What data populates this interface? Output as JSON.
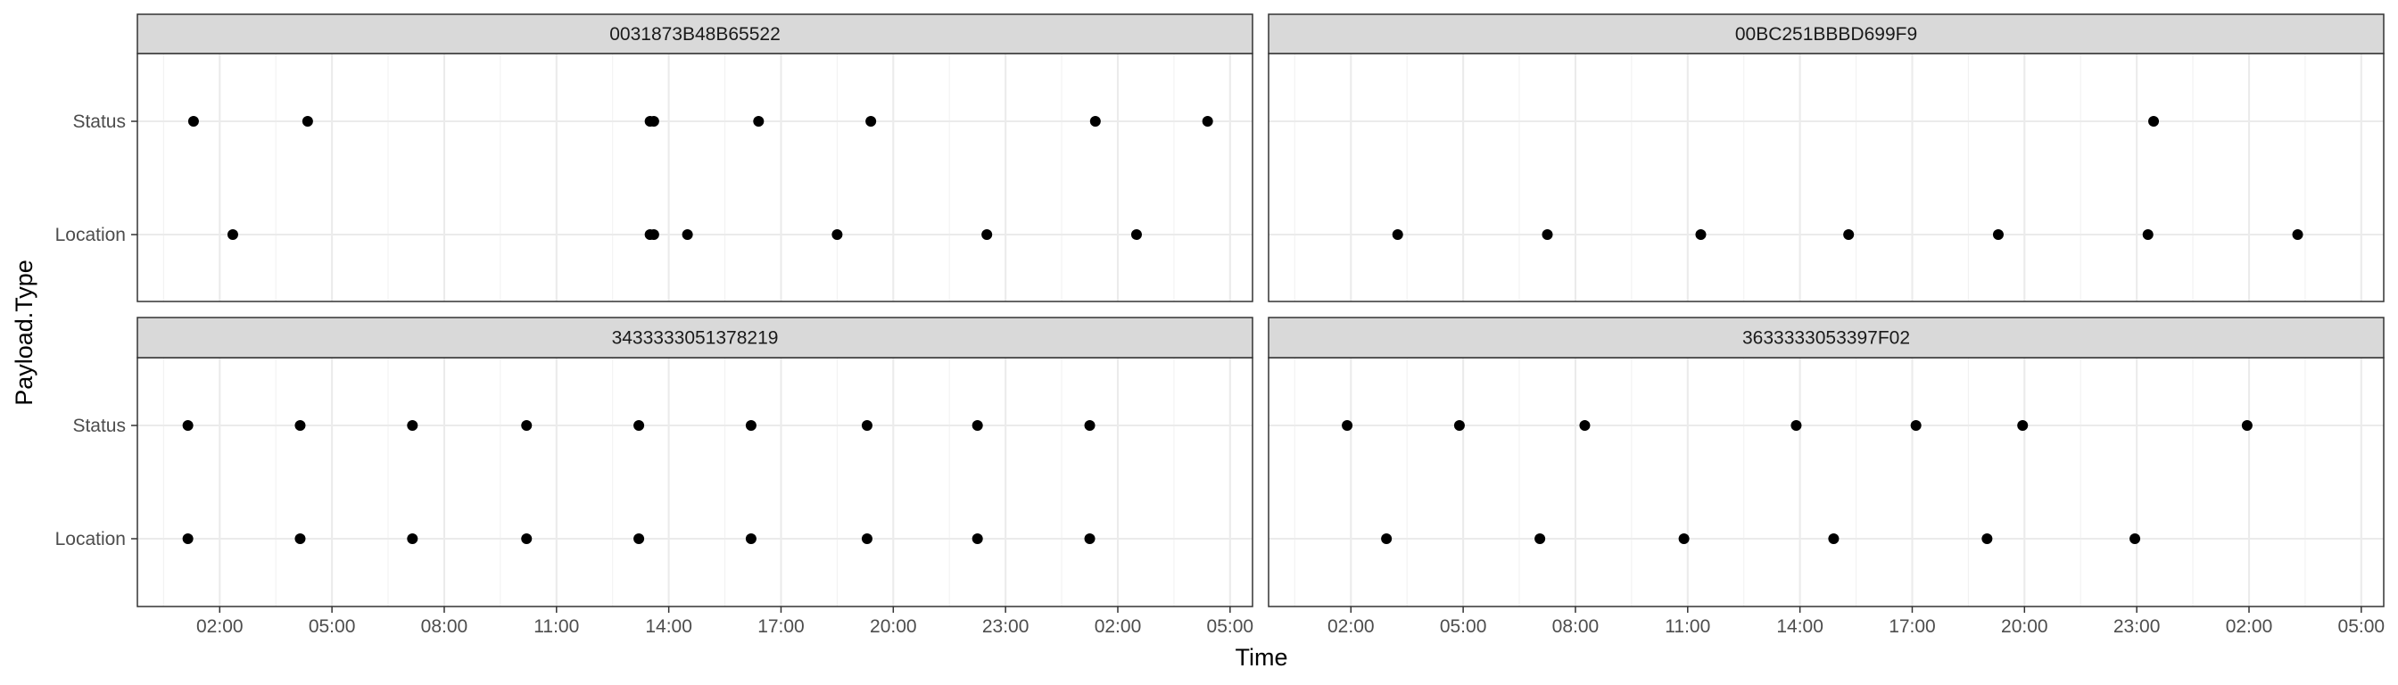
{
  "chart_data": {
    "type": "scatter",
    "xlabel": "Time",
    "ylabel": "Payload.Type",
    "y_categories": [
      "Location",
      "Status"
    ],
    "x_tick_labels": [
      "02:00",
      "05:00",
      "08:00",
      "11:00",
      "14:00",
      "17:00",
      "20:00",
      "23:00",
      "02:00",
      "05:00"
    ],
    "x_ticks_hours_offset": [
      2,
      5,
      8,
      11,
      14,
      17,
      20,
      23,
      26,
      29
    ],
    "xlim_hours_offset": [
      -0.2,
      29.6
    ],
    "x_note": "x values are hours offset from midnight of day 1 (day 2 times shown as 24+hh)",
    "grid": true,
    "theme": "bw",
    "point_color": "#000000",
    "panels": [
      {
        "title": "0031873B48B65522",
        "points": [
          {
            "category": "Status",
            "x": 1.3
          },
          {
            "category": "Status",
            "x": 4.35
          },
          {
            "category": "Status",
            "x": 13.5
          },
          {
            "category": "Status",
            "x": 13.6
          },
          {
            "category": "Status",
            "x": 16.4
          },
          {
            "category": "Status",
            "x": 19.4
          },
          {
            "category": "Status",
            "x": 25.4
          },
          {
            "category": "Status",
            "x": 28.4
          },
          {
            "category": "Location",
            "x": 2.35
          },
          {
            "category": "Location",
            "x": 13.5
          },
          {
            "category": "Location",
            "x": 13.6
          },
          {
            "category": "Location",
            "x": 14.5
          },
          {
            "category": "Location",
            "x": 18.5
          },
          {
            "category": "Location",
            "x": 22.5
          },
          {
            "category": "Location",
            "x": 26.5
          }
        ]
      },
      {
        "title": "00BC251BBBD699F9",
        "points": [
          {
            "category": "Status",
            "x": 23.45
          },
          {
            "category": "Location",
            "x": 3.25
          },
          {
            "category": "Location",
            "x": 7.25
          },
          {
            "category": "Location",
            "x": 11.35
          },
          {
            "category": "Location",
            "x": 15.3
          },
          {
            "category": "Location",
            "x": 19.3
          },
          {
            "category": "Location",
            "x": 23.3
          },
          {
            "category": "Location",
            "x": 27.3
          }
        ]
      },
      {
        "title": "3433333051378219",
        "points": [
          {
            "category": "Status",
            "x": 1.15
          },
          {
            "category": "Status",
            "x": 4.15
          },
          {
            "category": "Status",
            "x": 7.15
          },
          {
            "category": "Status",
            "x": 10.2
          },
          {
            "category": "Status",
            "x": 13.2
          },
          {
            "category": "Status",
            "x": 16.2
          },
          {
            "category": "Status",
            "x": 19.3
          },
          {
            "category": "Status",
            "x": 22.25
          },
          {
            "category": "Status",
            "x": 25.25
          },
          {
            "category": "Location",
            "x": 1.15
          },
          {
            "category": "Location",
            "x": 4.15
          },
          {
            "category": "Location",
            "x": 7.15
          },
          {
            "category": "Location",
            "x": 10.2
          },
          {
            "category": "Location",
            "x": 13.2
          },
          {
            "category": "Location",
            "x": 16.2
          },
          {
            "category": "Location",
            "x": 19.3
          },
          {
            "category": "Location",
            "x": 22.25
          },
          {
            "category": "Location",
            "x": 25.25
          }
        ]
      },
      {
        "title": "3633333053397F02",
        "points": [
          {
            "category": "Status",
            "x": 1.9
          },
          {
            "category": "Status",
            "x": 4.9
          },
          {
            "category": "Status",
            "x": 8.25
          },
          {
            "category": "Status",
            "x": 13.9
          },
          {
            "category": "Status",
            "x": 17.1
          },
          {
            "category": "Status",
            "x": 19.95
          },
          {
            "category": "Status",
            "x": 25.95
          },
          {
            "category": "Location",
            "x": 2.95
          },
          {
            "category": "Location",
            "x": 7.05
          },
          {
            "category": "Location",
            "x": 10.9
          },
          {
            "category": "Location",
            "x": 14.9
          },
          {
            "category": "Location",
            "x": 19.0
          },
          {
            "category": "Location",
            "x": 22.95
          }
        ]
      }
    ]
  }
}
